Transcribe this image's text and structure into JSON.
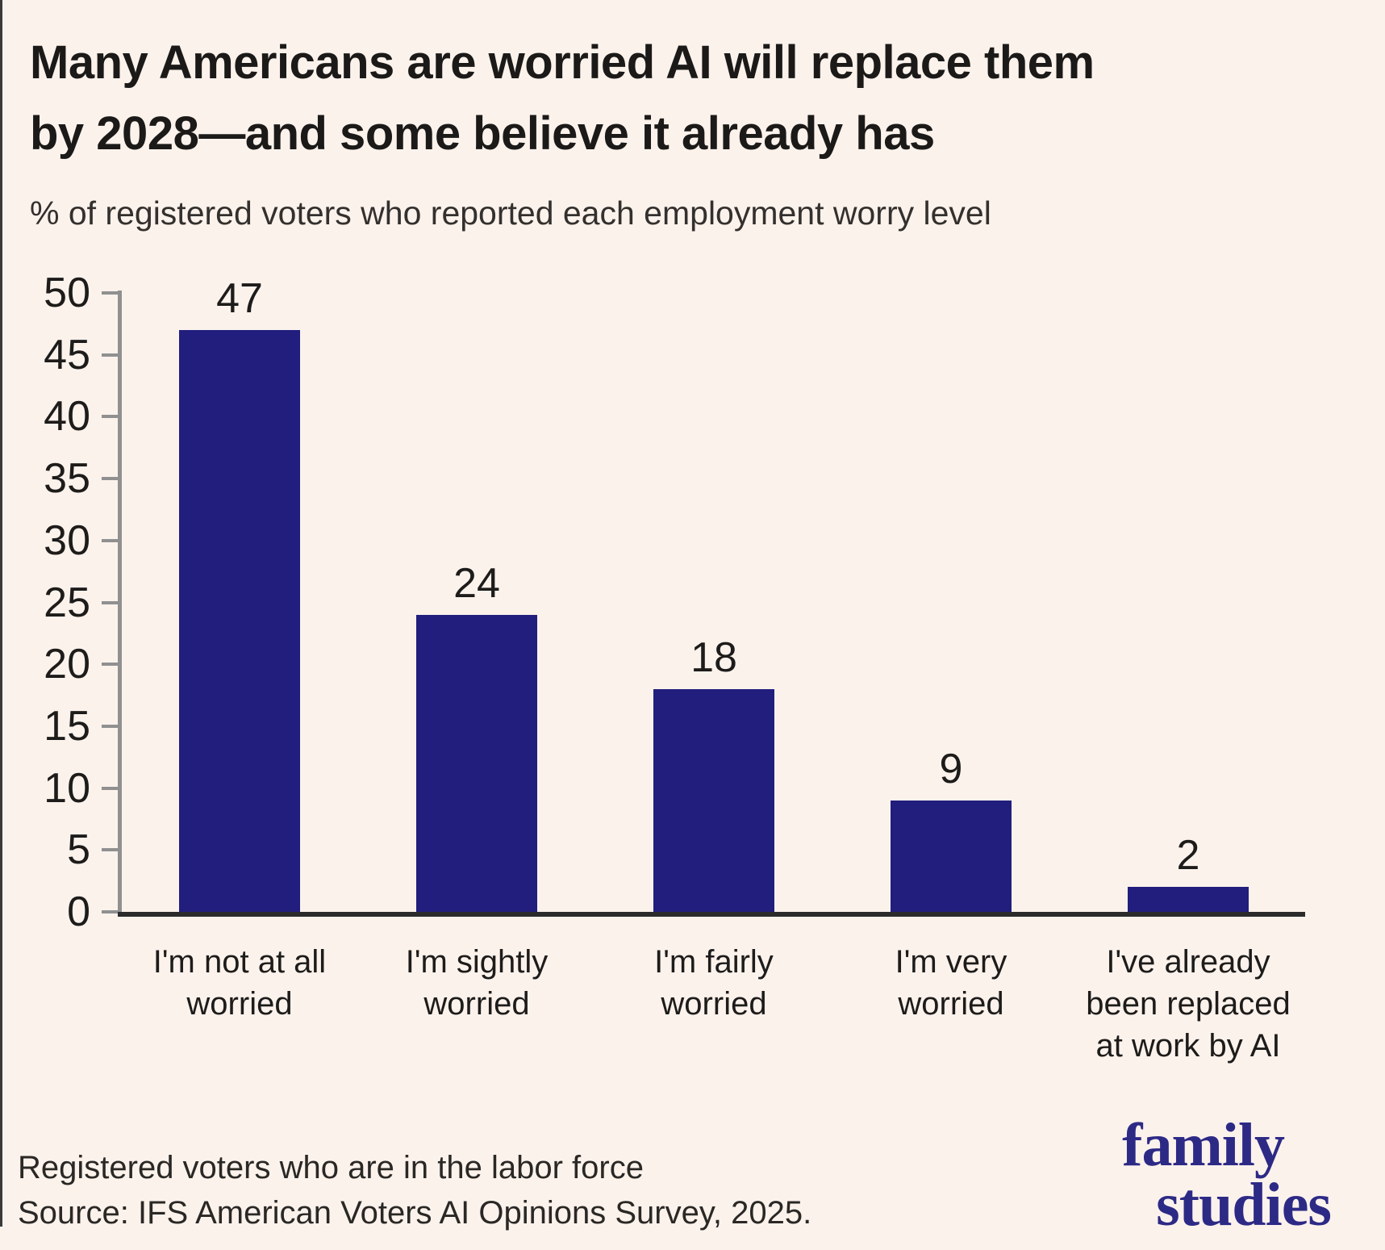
{
  "title": {
    "line1": "Many Americans are worried AI will replace them",
    "line2": "by 2028—and some believe it already has"
  },
  "subtitle": "% of registered voters who reported each employment worry level",
  "chart_data": {
    "type": "bar",
    "title": "Many Americans are worried AI will replace them by 2028—and some believe it already has",
    "subtitle": "% of registered voters who reported each employment worry level",
    "categories": [
      "I'm not at all\nworried",
      "I'm sightly\nworried",
      "I'm fairly\nworried",
      "I'm very\nworried",
      "I've already\nbeen replaced\nat work by AI"
    ],
    "values": [
      47,
      24,
      18,
      9,
      2
    ],
    "value_labels": [
      "47",
      "24",
      "18",
      "9",
      "2"
    ],
    "xlabel": "",
    "ylabel": "",
    "ylim": [
      0,
      50
    ],
    "yticks": [
      0,
      5,
      10,
      15,
      20,
      25,
      30,
      35,
      40,
      45,
      50
    ],
    "grid": false,
    "legend": "none",
    "bar_color": "#211e7d",
    "axis_color": "#909090",
    "baseline_color": "#2b2b2b",
    "background_color": "#fcf2ec"
  },
  "footer": {
    "note": "Registered voters who are in the labor force",
    "source": "Source: IFS American Voters AI Opinions Survey, 2025."
  },
  "logo": {
    "line1": "family",
    "line2": "studies",
    "color": "#2d2a86"
  }
}
